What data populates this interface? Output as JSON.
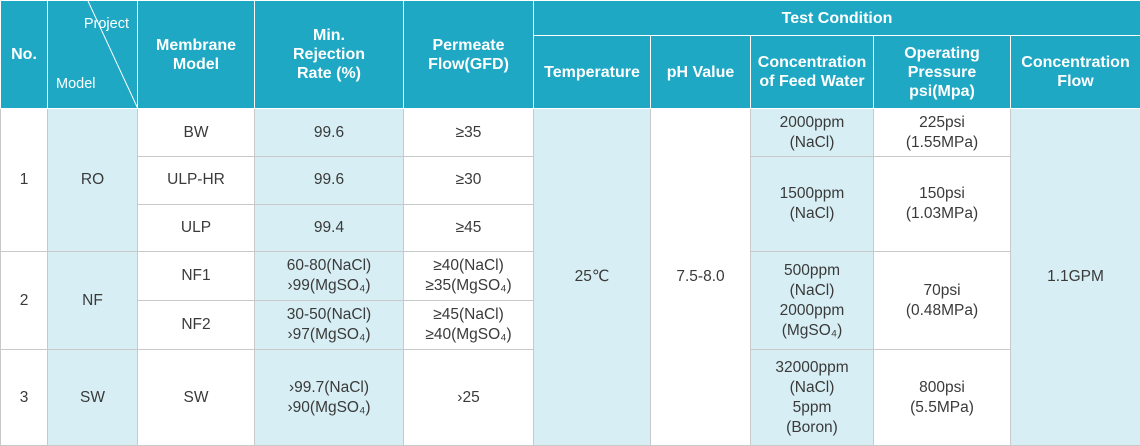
{
  "header": {
    "no": "No.",
    "project": "Project",
    "model": "Model",
    "membrane_model": [
      "Membrane",
      "Model"
    ],
    "rejection": [
      "Min.",
      "Rejection",
      "Rate (%)"
    ],
    "flow": [
      "Permeate",
      "Flow(GFD)"
    ],
    "test_condition": "Test Condition",
    "temperature": "Temperature",
    "ph": "pH Value",
    "feed": [
      "Concentration",
      "of Feed Water"
    ],
    "pressure": [
      "Operating",
      "Pressure",
      "psi(Mpa)"
    ],
    "conc_flow": [
      "Concentration",
      "Flow"
    ]
  },
  "groups": [
    {
      "no": "1",
      "model": "RO"
    },
    {
      "no": "2",
      "model": "NF"
    },
    {
      "no": "3",
      "model": "SW"
    }
  ],
  "rows": [
    {
      "membrane": "BW",
      "rejection": [
        "99.6"
      ],
      "flow": [
        "≥35"
      ]
    },
    {
      "membrane": "ULP-HR",
      "rejection": [
        "99.6"
      ],
      "flow": [
        "≥30"
      ]
    },
    {
      "membrane": "ULP",
      "rejection": [
        "99.4"
      ],
      "flow": [
        "≥45"
      ]
    },
    {
      "membrane": "NF1",
      "rejection": [
        "60-80(NaCl)",
        "›99(MgSO₄)"
      ],
      "flow": [
        "≥40(NaCl)",
        "≥35(MgSO₄)"
      ]
    },
    {
      "membrane": "NF2",
      "rejection": [
        "30-50(NaCl)",
        "›97(MgSO₄)"
      ],
      "flow": [
        "≥45(NaCl)",
        "≥40(MgSO₄)"
      ]
    },
    {
      "membrane": "SW",
      "rejection": [
        "›99.7(NaCl)",
        "›90(MgSO₄)"
      ],
      "flow": [
        "›25"
      ]
    }
  ],
  "shared": {
    "temperature": "25℃",
    "ph": "7.5-8.0",
    "conc_flow": "1.1GPM"
  },
  "feed": [
    [
      "2000ppm",
      "(NaCl)"
    ],
    [
      "1500ppm",
      "(NaCl)"
    ],
    [
      "500ppm",
      "(NaCl)",
      "2000ppm",
      "(MgSO₄)"
    ],
    [
      "32000ppm",
      "(NaCl)",
      "5ppm",
      "(Boron)"
    ]
  ],
  "pressure": [
    [
      "225psi",
      "(1.55MPa)"
    ],
    [
      "150psi",
      "(1.03MPa)"
    ],
    [
      "70psi",
      "(0.48MPa)"
    ],
    [
      "800psi",
      "(5.5MPa)"
    ]
  ],
  "colors": {
    "header_bg": "#1ea8c4",
    "light_cell": "#d7eff4",
    "text": "#3a3a3a"
  }
}
